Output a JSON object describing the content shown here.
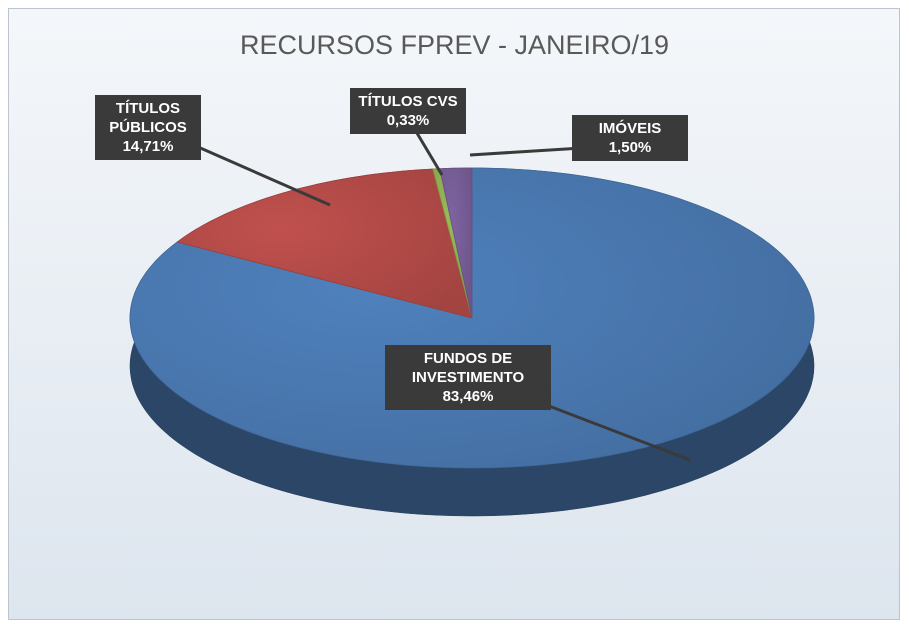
{
  "chart_data": {
    "type": "pie3d",
    "title": "RECURSOS FPREV - JANEIRO/19",
    "categories": [
      "FUNDOS DE INVESTIMENTO",
      "TÍTULOS PÚBLICOS",
      "TÍTULOS CVS",
      "IMÓVEIS"
    ],
    "values": [
      83.46,
      14.71,
      0.33,
      1.5
    ],
    "value_labels": [
      "83,46%",
      "14,71%",
      "0,33%",
      "1,50%"
    ],
    "colors": [
      "#4f81bd",
      "#c0504d",
      "#9bbb59",
      "#8064a2"
    ]
  }
}
